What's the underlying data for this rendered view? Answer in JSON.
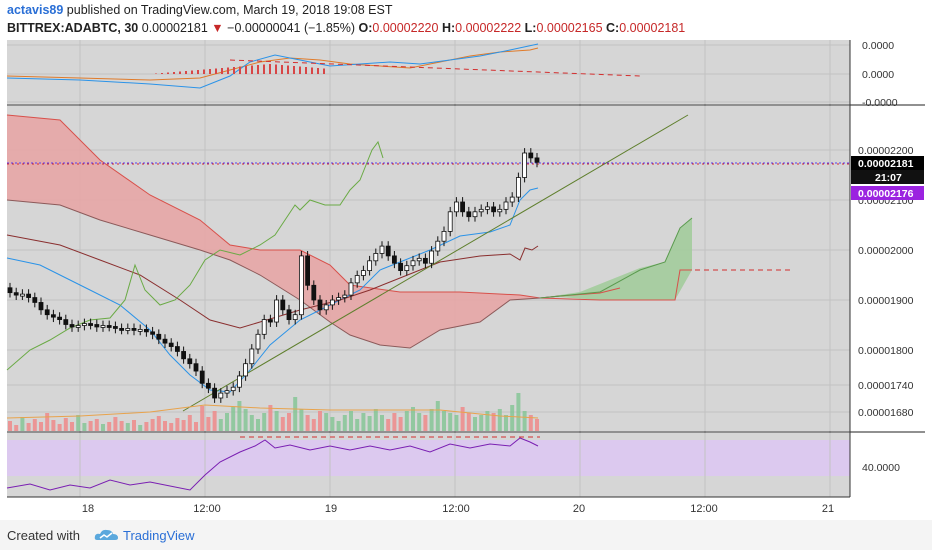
{
  "header": {
    "author": "actavis89",
    "published_text": "published on TradingView.com, March 19, 2018 19:08 EST",
    "symbol": "BITTREX:ADABTC, 30",
    "last_price": "0.00002181",
    "change": "−0.00000041 (−1.85%)",
    "open_label": "O:",
    "open": "0.00002220",
    "high_label": "H:",
    "high": "0.00002222",
    "low_label": "L:",
    "low": "0.00002165",
    "close_label": "C:",
    "close": "0.00002181"
  },
  "footer": {
    "created_with": "Created with",
    "brand": "TradingView"
  },
  "colors": {
    "background": "#d6d6d6",
    "grid": "#c2c2c2",
    "up_candle": "#ffffff",
    "down_candle": "#111111",
    "cloud_bearish": "#e8a3a3",
    "cloud_bullish": "#a3cc9c",
    "trendline": "#5f7f2d",
    "price_label": "#000000",
    "kijun_label": "#9b23e0",
    "rsi_band": "#dcc9ef",
    "rsi_line": "#7a1fb2"
  },
  "chart_data": {
    "type": "candlestick",
    "symbol": "BITTREX:ADABTC",
    "interval": "30",
    "x_axis_labels": [
      "18",
      "12:00",
      "19",
      "12:00",
      "20",
      "12:00",
      "21"
    ],
    "price_axis": {
      "tick_labels": [
        "0.00002200",
        "0.00002100",
        "0.00002000",
        "0.00001900",
        "0.00001800",
        "0.00001740",
        "0.00001680"
      ],
      "current_price_label": "0.00002181",
      "countdown_label": "21:07",
      "kijun_label": "0.00002176"
    },
    "macd_axis": {
      "tick_labels": [
        "0.0000",
        "0.0000",
        "-0.0000"
      ]
    },
    "rsi_axis": {
      "tick_labels": [
        "40.0000"
      ]
    },
    "ohlc_last": {
      "open": 2.22e-05,
      "high": 2.222e-05,
      "low": 2.165e-05,
      "close": 2.181e-05
    },
    "close_series": [
      1.915e-05,
      1.91e-05,
      1.912e-05,
      1.905e-05,
      1.895e-05,
      1.88e-05,
      1.87e-05,
      1.865e-05,
      1.86e-05,
      1.85e-05,
      1.845e-05,
      1.848e-05,
      1.852e-05,
      1.85e-05,
      1.845e-05,
      1.848e-05,
      1.846e-05,
      1.842e-05,
      1.84e-05,
      1.842e-05,
      1.838e-05,
      1.84e-05,
      1.835e-05,
      1.83e-05,
      1.82e-05,
      1.812e-05,
      1.805e-05,
      1.795e-05,
      1.78e-05,
      1.77e-05,
      1.755e-05,
      1.73e-05,
      1.72e-05,
      1.7e-05,
      1.71e-05,
      1.715e-05,
      1.722e-05,
      1.745e-05,
      1.77e-05,
      1.8e-05,
      1.83e-05,
      1.86e-05,
      1.855e-05,
      1.9e-05,
      1.88e-05,
      1.86e-05,
      1.87e-05,
      1.99e-05,
      1.93e-05,
      1.9e-05,
      1.88e-05,
      1.89e-05,
      1.9e-05,
      1.905e-05,
      1.91e-05,
      1.935e-05,
      1.95e-05,
      1.96e-05,
      1.98e-05,
      1.995e-05,
      2.01e-05,
      1.99e-05,
      1.975e-05,
      1.96e-05,
      1.97e-05,
      1.98e-05,
      1.985e-05,
      1.975e-05,
      2e-05,
      2.02e-05,
      2.04e-05,
      2.08e-05,
      2.1e-05,
      2.08e-05,
      2.07e-05,
      2.08e-05,
      2.085e-05,
      2.09e-05,
      2.08e-05,
      2.085e-05,
      2.1e-05,
      2.11e-05,
      2.15e-05,
      2.2e-05,
      2.19e-05,
      2.181e-05
    ]
  }
}
